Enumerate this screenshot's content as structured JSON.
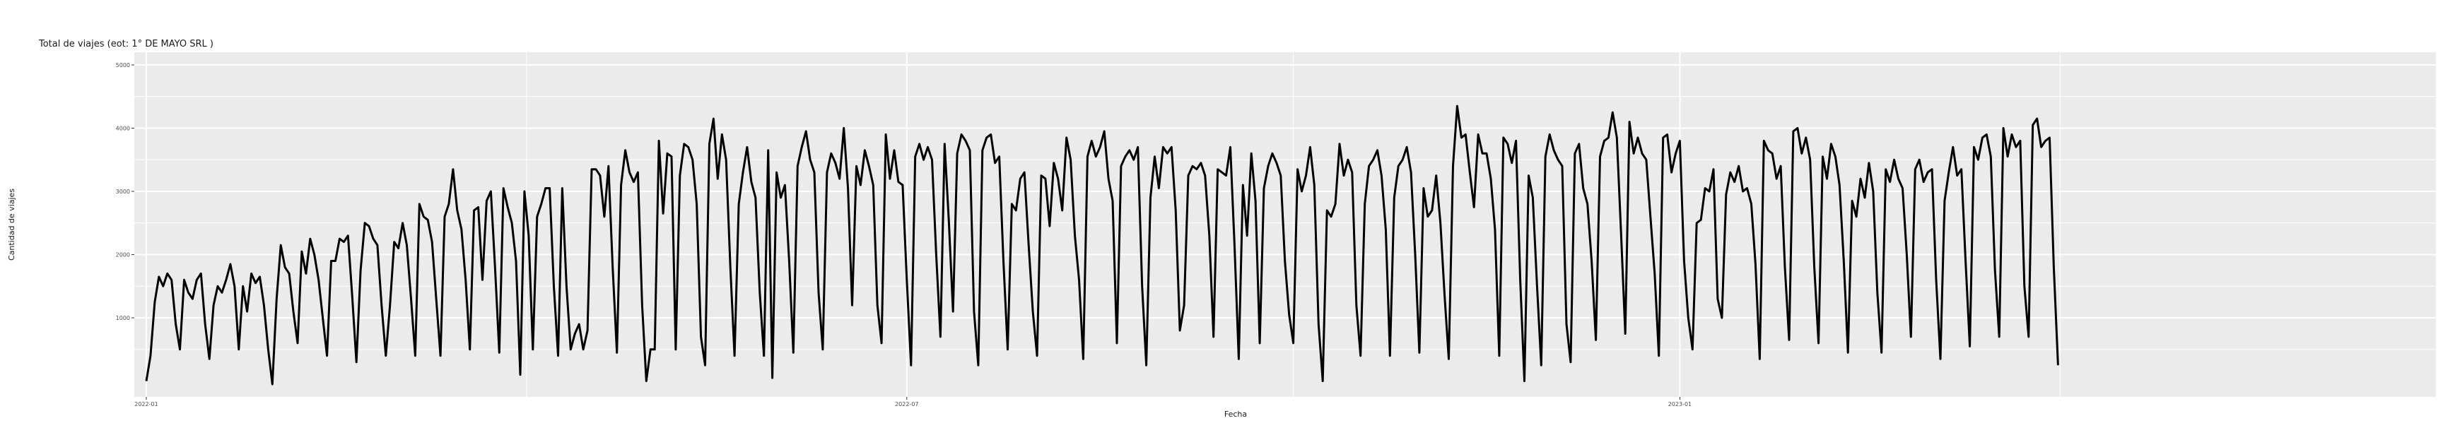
{
  "chart_data": {
    "type": "line",
    "title": "Total de viajes (eot: 1° DE MAYO SRL )",
    "xlabel": "Fecha",
    "ylabel": "Cantidad de viajes",
    "x_start": "2022-01-01",
    "x_end": "2023-05-31",
    "x_ticks": [
      {
        "date": "2022-01-01",
        "label": "2022-01"
      },
      {
        "date": "2022-07-01",
        "label": "2022-07"
      },
      {
        "date": "2023-01-01",
        "label": "2023-01"
      }
    ],
    "ylim": [
      -250,
      5200
    ],
    "y_ticks": [
      1000,
      2000,
      3000,
      4000,
      5000
    ],
    "y_tick_labels": [
      "1000",
      "2000",
      "3000",
      "4000",
      "5000"
    ],
    "grid": true,
    "colors": {
      "panel": "#ebebeb",
      "grid": "#ffffff",
      "line": "#000000"
    },
    "series": [
      {
        "values": [
          0,
          400,
          1250,
          1650,
          1500,
          1700,
          1600,
          900,
          500,
          1600,
          1400,
          1300,
          1600,
          1700,
          900,
          350,
          1200,
          1500,
          1400,
          1600,
          1850,
          1500,
          500,
          1500,
          1100,
          1700,
          1550,
          1650,
          1200,
          500,
          -50,
          1300,
          2150,
          1800,
          1700,
          1100,
          600,
          2050,
          1700,
          2250,
          2000,
          1600,
          1000,
          400,
          1900,
          1900,
          2250,
          2200,
          2300,
          1350,
          300,
          1750,
          2500,
          2450,
          2250,
          2150,
          1200,
          400,
          1200,
          2200,
          2100,
          2500,
          2150,
          1300,
          400,
          2800,
          2600,
          2550,
          2200,
          1300,
          400,
          2600,
          2800,
          3350,
          2700,
          2400,
          1600,
          500,
          2700,
          2750,
          1600,
          2850,
          3000,
          1800,
          450,
          3050,
          2750,
          2500,
          1900,
          100,
          3000,
          2300,
          500,
          2600,
          2800,
          3050,
          3050,
          1500,
          400,
          3050,
          1500,
          500,
          750,
          900,
          500,
          800,
          3350,
          3350,
          3250,
          2600,
          3400,
          1800,
          450,
          3100,
          3650,
          3300,
          3150,
          3300,
          1200,
          0,
          500,
          500,
          3800,
          2650,
          3600,
          3550,
          500,
          3250,
          3750,
          3700,
          3500,
          2800,
          700,
          250,
          3750,
          4150,
          3200,
          3900,
          3500,
          1800,
          400,
          2800,
          3300,
          3700,
          3150,
          2900,
          1400,
          400,
          3650,
          50,
          3300,
          2900,
          3100,
          1900,
          450,
          3400,
          3700,
          3950,
          3500,
          3300,
          1400,
          500,
          3300,
          3600,
          3450,
          3200,
          4000,
          3050,
          1200,
          3400,
          3100,
          3650,
          3400,
          3100,
          1200,
          600,
          3900,
          3200,
          3650,
          3150,
          3100,
          1600,
          250,
          3550,
          3750,
          3500,
          3700,
          3500,
          2000,
          700,
          3750,
          2550,
          1100,
          3600,
          3900,
          3800,
          3650,
          1100,
          250,
          3650,
          3850,
          3900,
          3450,
          3550,
          1900,
          500,
          2800,
          2700,
          3200,
          3300,
          2150,
          1100,
          400,
          3250,
          3200,
          2450,
          3450,
          3200,
          2700,
          3850,
          3500,
          2300,
          1600,
          350,
          3550,
          3800,
          3550,
          3700,
          3950,
          3200,
          2850,
          600,
          3400,
          3550,
          3650,
          3500,
          3700,
          1500,
          250,
          2900,
          3550,
          3050,
          3700,
          3600,
          3700,
          2700,
          800,
          1200,
          3250,
          3400,
          3350,
          3450,
          3250,
          2300,
          700,
          3350,
          3300,
          3250,
          3700,
          2150,
          350,
          3100,
          2300,
          3600,
          2850,
          600,
          3050,
          3400,
          3600,
          3450,
          3250,
          1900,
          1050,
          600,
          3350,
          3000,
          3250,
          3700,
          3100,
          900,
          0,
          2700,
          2600,
          2800,
          3750,
          3250,
          3500,
          3300,
          1200,
          400,
          2800,
          3400,
          3500,
          3650,
          3250,
          2400,
          400,
          2900,
          3400,
          3500,
          3700,
          3300,
          2000,
          450,
          3050,
          2600,
          2700,
          3250,
          2500,
          1350,
          350,
          3400,
          4350,
          3850,
          3900,
          3300,
          2750,
          3900,
          3600,
          3600,
          3200,
          2400,
          400,
          3850,
          3750,
          3450,
          3800,
          1600,
          0,
          3250,
          2900,
          1500,
          250,
          3550,
          3900,
          3650,
          3500,
          3400,
          900,
          300,
          3600,
          3750,
          3050,
          2800,
          1900,
          650,
          3550,
          3800,
          3850,
          4250,
          3850,
          2350,
          750,
          4100,
          3600,
          3850,
          3600,
          3500,
          2600,
          1700,
          400,
          3850,
          3900,
          3300,
          3600,
          3800,
          1900,
          1000,
          500,
          2500,
          2550,
          3050,
          3000,
          3350,
          1300,
          1000,
          2950,
          3300,
          3150,
          3400,
          3000,
          3050,
          2800,
          1850,
          350,
          3800,
          3650,
          3600,
          3200,
          3400,
          1800,
          650,
          3950,
          4000,
          3600,
          3850,
          3500,
          1800,
          600,
          3550,
          3200,
          3750,
          3550,
          3100,
          1900,
          450,
          2850,
          2600,
          3200,
          2900,
          3450,
          3000,
          1400,
          450,
          3350,
          3150,
          3500,
          3200,
          3050,
          2000,
          700,
          3350,
          3500,
          3150,
          3300,
          3350,
          1600,
          350,
          2850,
          3300,
          3700,
          3250,
          3350,
          1900,
          550,
          3700,
          3500,
          3850,
          3900,
          3550,
          1750,
          700,
          4000,
          3550,
          3900,
          3700,
          3800,
          1500,
          700,
          4050,
          4150,
          3700,
          3800,
          3850,
          1800,
          250
        ]
      }
    ]
  }
}
